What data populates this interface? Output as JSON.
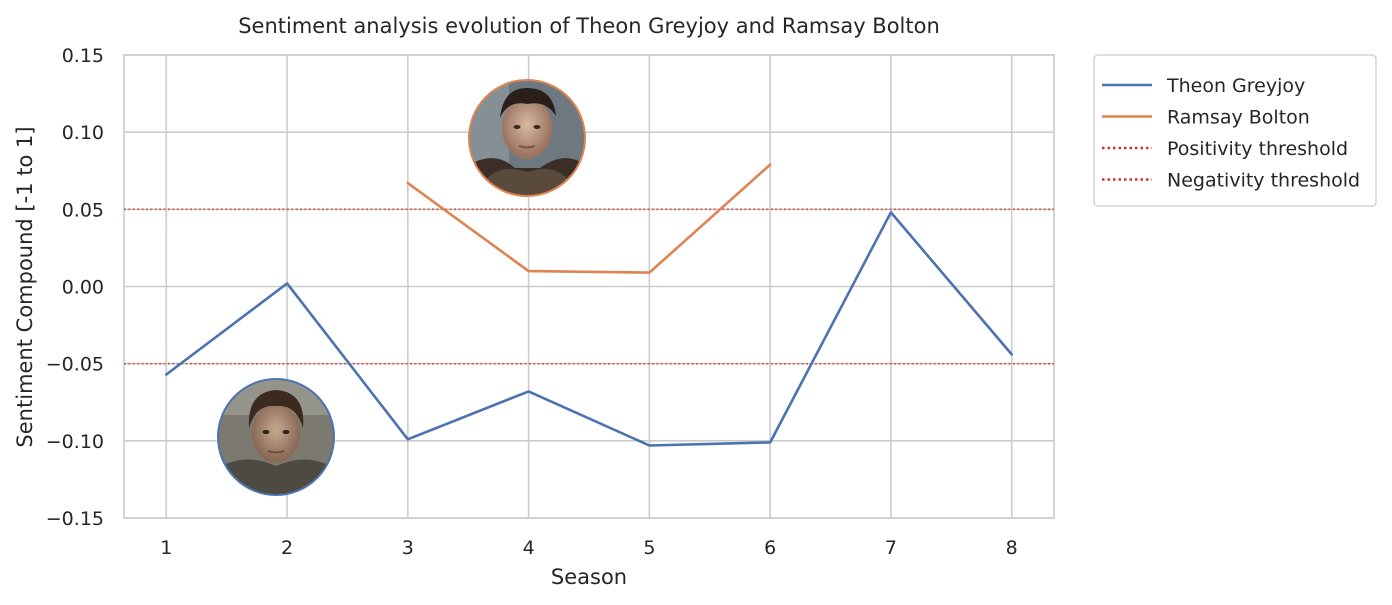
{
  "chart_data": {
    "type": "line",
    "title": "Sentiment analysis evolution of Theon Greyjoy and Ramsay Bolton",
    "xlabel": "Season",
    "ylabel": "Sentiment Compound [-1 to 1]",
    "x": [
      1,
      2,
      3,
      4,
      5,
      6,
      7,
      8
    ],
    "xlim": [
      0.65,
      8.35
    ],
    "ylim": [
      -0.15,
      0.15
    ],
    "yticks": [
      -0.15,
      -0.1,
      -0.05,
      0.0,
      0.05,
      0.1,
      0.15
    ],
    "ytick_labels": [
      "−0.15",
      "−0.10",
      "−0.05",
      "0.00",
      "0.05",
      "0.10",
      "0.15"
    ],
    "xtick_labels": [
      "1",
      "2",
      "3",
      "4",
      "5",
      "6",
      "7",
      "8"
    ],
    "grid": true,
    "legend_position": "outside-upper-right",
    "series": [
      {
        "name": "Theon Greyjoy",
        "color": "#4c72b0",
        "x": [
          1,
          2,
          3,
          4,
          5,
          6,
          7,
          8
        ],
        "values": [
          -0.057,
          0.002,
          -0.099,
          -0.068,
          -0.103,
          -0.101,
          0.048,
          -0.044
        ]
      },
      {
        "name": "Ramsay Bolton",
        "color": "#dd8452",
        "x": [
          3,
          4,
          5,
          6
        ],
        "values": [
          0.067,
          0.01,
          0.009,
          0.079
        ]
      }
    ],
    "thresholds": [
      {
        "name": "Positivity threshold",
        "value": 0.05,
        "color": "#c0392b",
        "style": "dotted"
      },
      {
        "name": "Negativity threshold",
        "value": -0.05,
        "color": "#c0392b",
        "style": "dotted"
      }
    ],
    "portraits": [
      {
        "subject": "Ramsay Bolton",
        "border_color": "#dd8452",
        "x": 4,
        "y": 0.095
      },
      {
        "subject": "Theon Greyjoy",
        "border_color": "#4c72b0",
        "x": 2,
        "y": -0.098
      }
    ]
  }
}
